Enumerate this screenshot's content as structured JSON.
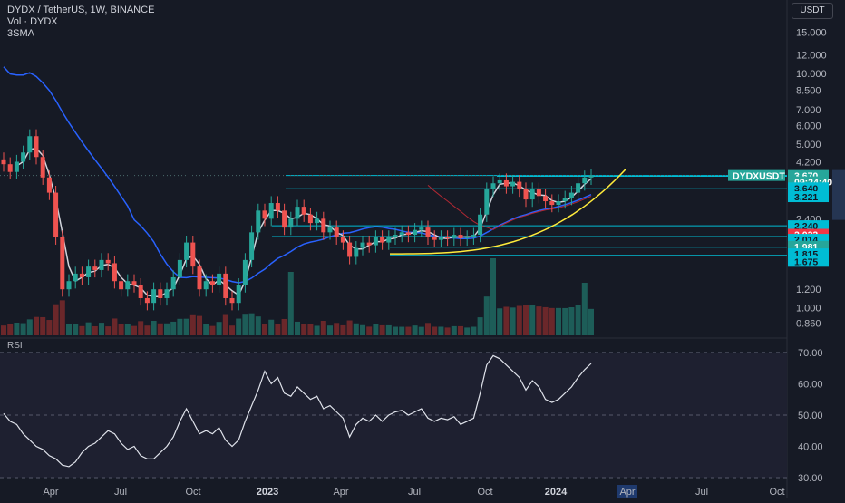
{
  "header": {
    "symbol_line": "DYDX / TetherUS, 1W, BINANCE",
    "vol_line": "Vol · DYDX",
    "sma_line": "3SMA"
  },
  "currency_button": "USDT",
  "rsi_label": "RSI",
  "price_axis": {
    "labels": [
      "15.000",
      "12.000",
      "10.000",
      "8.500",
      "7.000",
      "6.000",
      "5.000",
      "4.200",
      "2.400",
      "1.200",
      "1.000",
      "0.860"
    ]
  },
  "price_tags": [
    {
      "text": "3.670",
      "color": "#26a69a",
      "text_color": "#ffffff",
      "price": 3.67
    },
    {
      "text": "09:24:40",
      "color": "#26a69a",
      "text_color": "#ffffff",
      "price": 3.45
    },
    {
      "text": "3.640",
      "color": "#00bcd4",
      "text_color": "#131722",
      "price": 3.25
    },
    {
      "text": "3.221",
      "color": "#00bcd4",
      "text_color": "#131722",
      "price": 2.98
    },
    {
      "text": "2.240",
      "color": "#00bcd4",
      "text_color": "#131722",
      "price": 2.24
    },
    {
      "text": "2.033",
      "color": "#f23645",
      "text_color": "#ffffff",
      "price": 2.06
    },
    {
      "text": "2.014",
      "color": "#00bcd4",
      "text_color": "#131722",
      "price": 1.96
    },
    {
      "text": "1.981",
      "color": "#26a69a",
      "text_color": "#ffffff",
      "price": 1.83
    },
    {
      "text": "1.815",
      "color": "#00bcd4",
      "text_color": "#131722",
      "price": 1.7
    },
    {
      "text": "1.675",
      "color": "#00bcd4",
      "text_color": "#131722",
      "price": 1.58
    }
  ],
  "symbol_tag": "DYDXUSDT",
  "rsi_axis": {
    "labels": [
      "70.00",
      "60.00",
      "50.00",
      "40.00",
      "30.00"
    ]
  },
  "time_axis": {
    "labels": [
      "Apr",
      "Jul",
      "Oct",
      "2023",
      "Apr",
      "Jul",
      "Oct",
      "2024",
      "Apr",
      "Jul",
      "Oct"
    ],
    "highlight": "Apr"
  },
  "colors": {
    "up": "#26a69a",
    "down": "#ef5350",
    "sma": "#d1d4dc",
    "ma_blue": "#2962ff",
    "ma_red": "#b22833",
    "curve": "#ffeb3b",
    "level": "#00bcd4",
    "rsi_band": "#1e2030"
  },
  "chart_data": {
    "type": "candlestick",
    "title": "DYDX / TetherUS, 1W, BINANCE",
    "y_scale": "log",
    "ylim": [
      0.75,
      18
    ],
    "rsi_ylim": [
      30,
      72
    ],
    "last_price": 3.67,
    "horizontal_levels": [
      3.64,
      3.221,
      2.24,
      2.014,
      1.815,
      1.675
    ],
    "candles": [
      [
        4.3,
        4.1
      ],
      [
        4.1,
        3.8
      ],
      [
        3.8,
        4.2
      ],
      [
        4.2,
        4.6
      ],
      [
        4.6,
        5.4
      ],
      [
        5.4,
        4.4
      ],
      [
        4.4,
        3.6
      ],
      [
        3.6,
        3.1
      ],
      [
        3.1,
        2.0
      ],
      [
        2.0,
        1.2
      ],
      [
        1.2,
        1.3
      ],
      [
        1.3,
        1.4
      ],
      [
        1.4,
        1.35
      ],
      [
        1.35,
        1.5
      ],
      [
        1.5,
        1.45
      ],
      [
        1.45,
        1.6
      ],
      [
        1.6,
        1.55
      ],
      [
        1.55,
        1.3
      ],
      [
        1.3,
        1.2
      ],
      [
        1.2,
        1.3
      ],
      [
        1.3,
        1.25
      ],
      [
        1.25,
        1.1
      ],
      [
        1.1,
        1.05
      ],
      [
        1.05,
        1.2
      ],
      [
        1.2,
        1.1
      ],
      [
        1.1,
        1.2
      ],
      [
        1.2,
        1.35
      ],
      [
        1.35,
        1.6
      ],
      [
        1.6,
        1.9
      ],
      [
        1.9,
        1.5
      ],
      [
        1.5,
        1.2
      ],
      [
        1.2,
        1.3
      ],
      [
        1.3,
        1.25
      ],
      [
        1.25,
        1.4
      ],
      [
        1.4,
        1.1
      ],
      [
        1.1,
        1.05
      ],
      [
        1.05,
        1.25
      ],
      [
        1.25,
        1.6
      ],
      [
        1.6,
        2.1
      ],
      [
        2.1,
        2.6
      ],
      [
        2.6,
        2.4
      ],
      [
        2.4,
        2.8
      ],
      [
        2.8,
        2.6
      ],
      [
        2.6,
        2.2
      ],
      [
        2.2,
        2.4
      ],
      [
        2.4,
        2.7
      ],
      [
        2.7,
        2.5
      ],
      [
        2.5,
        2.3
      ],
      [
        2.3,
        2.4
      ],
      [
        2.4,
        2.1
      ],
      [
        2.1,
        2.2
      ],
      [
        2.2,
        2.0
      ],
      [
        2.0,
        1.9
      ],
      [
        1.9,
        1.65
      ],
      [
        1.65,
        1.8
      ],
      [
        1.8,
        1.9
      ],
      [
        1.9,
        1.85
      ],
      [
        1.85,
        2.0
      ],
      [
        2.0,
        1.9
      ],
      [
        1.9,
        2.0
      ],
      [
        2.0,
        2.05
      ],
      [
        2.05,
        2.1
      ],
      [
        2.1,
        2.05
      ],
      [
        2.05,
        2.15
      ],
      [
        2.15,
        2.2
      ],
      [
        2.2,
        2.0
      ],
      [
        2.0,
        1.95
      ],
      [
        1.95,
        2.0
      ],
      [
        2.0,
        1.98
      ],
      [
        1.98,
        2.05
      ],
      [
        2.05,
        1.98
      ],
      [
        1.98,
        2.0
      ],
      [
        2.0,
        2.05
      ],
      [
        2.05,
        2.5
      ],
      [
        2.5,
        3.2
      ],
      [
        3.2,
        3.4
      ],
      [
        3.4,
        3.5
      ],
      [
        3.5,
        3.3
      ],
      [
        3.3,
        3.45
      ],
      [
        3.45,
        3.2
      ],
      [
        3.2,
        2.9
      ],
      [
        2.9,
        3.2
      ],
      [
        3.2,
        3.0
      ],
      [
        3.0,
        2.85
      ],
      [
        2.85,
        2.75
      ],
      [
        2.75,
        2.85
      ],
      [
        2.85,
        2.95
      ],
      [
        2.95,
        3.1
      ],
      [
        3.1,
        3.4
      ],
      [
        3.4,
        3.6
      ],
      [
        3.6,
        3.67
      ]
    ],
    "rsi": [
      50.5,
      48,
      47,
      44,
      42,
      40,
      39,
      37,
      36,
      34,
      33.5,
      35,
      38,
      40,
      41,
      43,
      45,
      44,
      41,
      39,
      40,
      37,
      36,
      36,
      38,
      40,
      43,
      48,
      52,
      48,
      44,
      45,
      44,
      46,
      42,
      40,
      42,
      48,
      53,
      58,
      64,
      60,
      62,
      57,
      56,
      59,
      57,
      55,
      56,
      52,
      53,
      51,
      49,
      43,
      47,
      49,
      48,
      50,
      48,
      50,
      51,
      51.5,
      50,
      51,
      52,
      49,
      48,
      49,
      48.5,
      49.5,
      47,
      48,
      49,
      57,
      66,
      69,
      68,
      66,
      64,
      62,
      58,
      61,
      59,
      55,
      54,
      55,
      57,
      59,
      62,
      64.5,
      66.5
    ]
  }
}
